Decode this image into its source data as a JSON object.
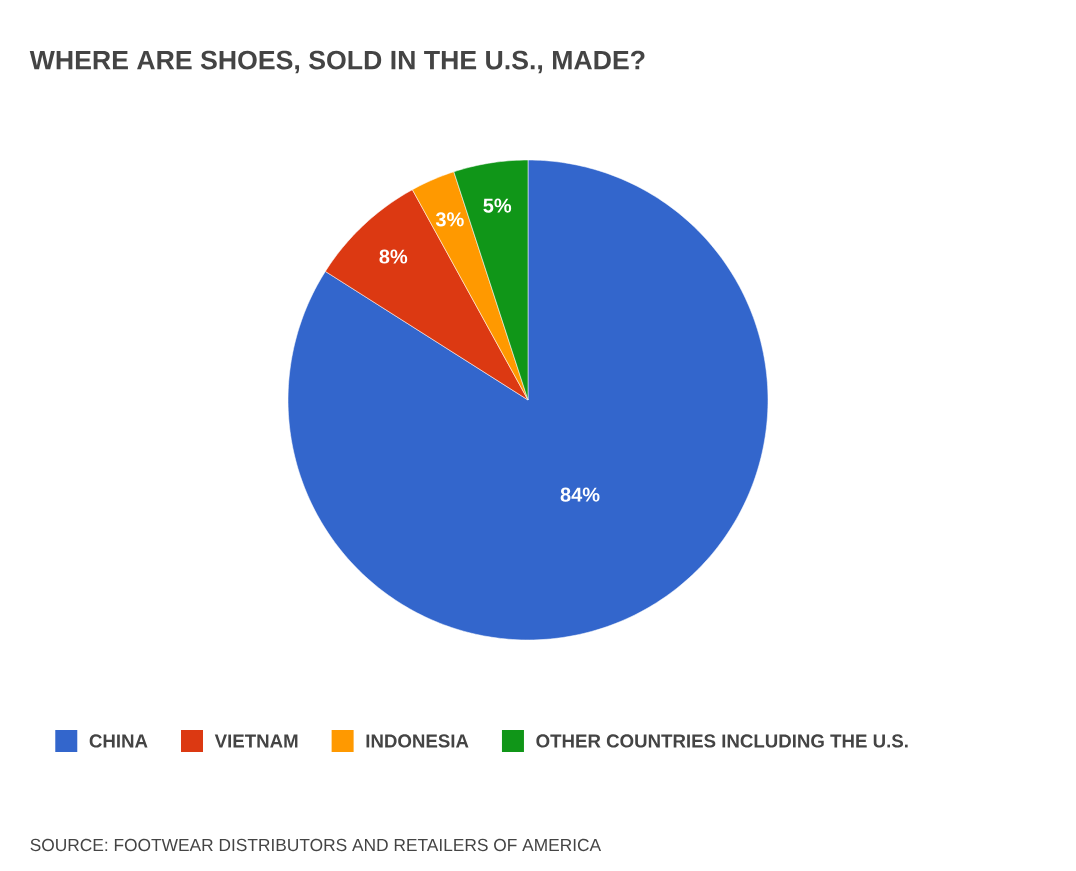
{
  "chart_data": {
    "type": "pie",
    "title": "WHERE ARE SHOES, SOLD IN THE U.S., MADE?",
    "categories": [
      "CHINA",
      "VIETNAM",
      "INDONESIA",
      "OTHER COUNTRIES INCLUDING THE U.S."
    ],
    "values": [
      84,
      8,
      3,
      5
    ],
    "colors": [
      "#3366cc",
      "#dc3912",
      "#ff9900",
      "#109618"
    ],
    "value_labels": [
      "84%",
      "8%",
      "3%",
      "5%"
    ],
    "legend": "bottom",
    "annotations": [
      "SOURCE: FOOTWEAR DISTRIBUTORS AND RETAILERS OF AMERICA"
    ]
  }
}
